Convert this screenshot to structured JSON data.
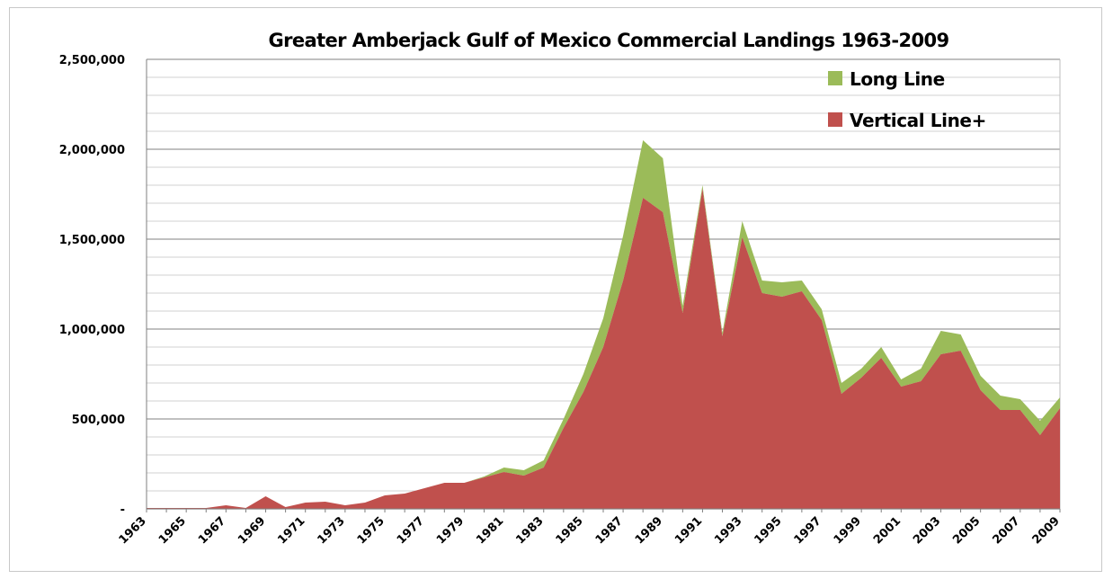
{
  "chart_data": {
    "type": "area",
    "stacked": true,
    "title": "Greater Amberjack Gulf of Mexico Commercial Landings 1963-2009",
    "x": [
      1963,
      1964,
      1965,
      1966,
      1967,
      1968,
      1969,
      1970,
      1971,
      1972,
      1973,
      1974,
      1975,
      1976,
      1977,
      1978,
      1979,
      1980,
      1981,
      1982,
      1983,
      1984,
      1985,
      1986,
      1987,
      1988,
      1989,
      1990,
      1991,
      1992,
      1993,
      1994,
      1995,
      1996,
      1997,
      1998,
      1999,
      2000,
      2001,
      2002,
      2003,
      2004,
      2005,
      2006,
      2007,
      2008,
      2009
    ],
    "x_tick_labels": [
      "1963",
      "1965",
      "1967",
      "1969",
      "1971",
      "1973",
      "1975",
      "1977",
      "1979",
      "1981",
      "1983",
      "1985",
      "1987",
      "1989",
      "1991",
      "1993",
      "1995",
      "1997",
      "1999",
      "2001",
      "2003",
      "2005",
      "2007",
      "2009"
    ],
    "y_tick_labels": [
      "-",
      "500,000",
      "1,000,000",
      "1,500,000",
      "2,000,000",
      "2,500,000"
    ],
    "ylim": [
      0,
      2500000
    ],
    "y_tick_step": 500000,
    "y_minor_step": 100000,
    "grid": true,
    "legend_position": "top-right",
    "series": [
      {
        "name": "Vertical Line+",
        "color": "#c0504d",
        "values": [
          5000,
          5000,
          5000,
          5000,
          20000,
          5000,
          70000,
          10000,
          35000,
          40000,
          20000,
          35000,
          75000,
          85000,
          115000,
          145000,
          145000,
          175000,
          205000,
          185000,
          230000,
          450000,
          650000,
          900000,
          1270000,
          1730000,
          1650000,
          1090000,
          1780000,
          960000,
          1510000,
          1200000,
          1180000,
          1210000,
          1050000,
          640000,
          730000,
          840000,
          680000,
          710000,
          860000,
          880000,
          660000,
          550000,
          550000,
          410000,
          560000
        ]
      },
      {
        "name": "Long Line",
        "color": "#9bbb59",
        "values": [
          0,
          0,
          0,
          0,
          0,
          0,
          0,
          0,
          0,
          0,
          0,
          0,
          0,
          0,
          0,
          0,
          0,
          5000,
          25000,
          30000,
          40000,
          50000,
          100000,
          160000,
          250000,
          320000,
          300000,
          40000,
          20000,
          20000,
          90000,
          70000,
          80000,
          60000,
          60000,
          60000,
          50000,
          60000,
          40000,
          70000,
          130000,
          90000,
          80000,
          80000,
          60000,
          80000,
          60000
        ]
      }
    ]
  }
}
